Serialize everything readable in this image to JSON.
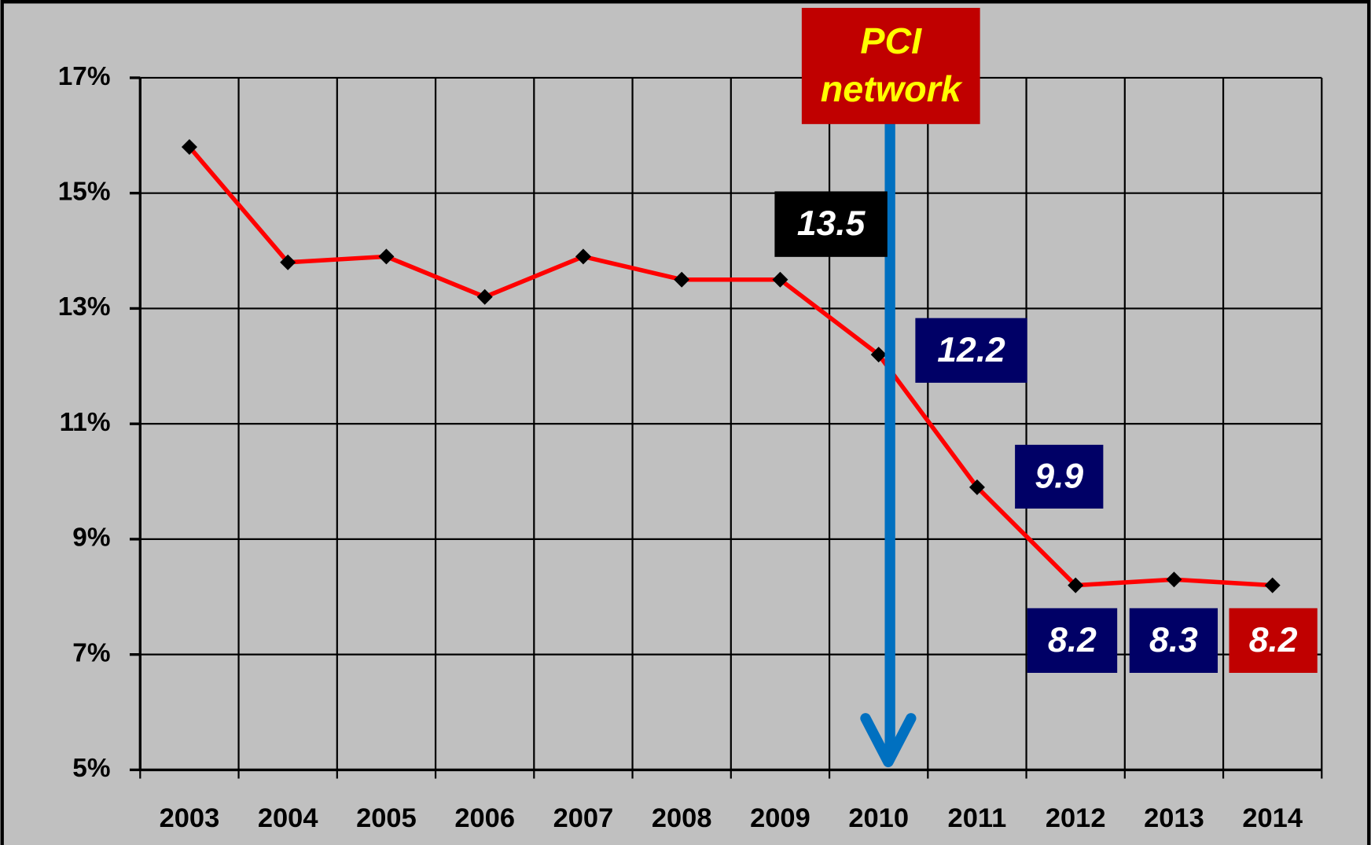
{
  "chart_data": {
    "type": "line",
    "categories": [
      "2003",
      "2004",
      "2005",
      "2006",
      "2007",
      "2008",
      "2009",
      "2010",
      "2011",
      "2012",
      "2013",
      "2014"
    ],
    "series": [
      {
        "color": "#ff0000",
        "values": [
          15.8,
          13.8,
          13.9,
          13.2,
          13.9,
          13.5,
          13.5,
          12.2,
          9.9,
          8.2,
          8.3,
          8.2
        ]
      }
    ],
    "value_labels": [
      null,
      null,
      null,
      null,
      null,
      null,
      "13.5",
      "12.2",
      "9.9",
      "8.2",
      "8.3",
      "8.2"
    ],
    "value_label_colors": [
      null,
      null,
      null,
      null,
      null,
      null,
      "#000000",
      "#000066",
      "#000066",
      "#000066",
      "#000066",
      "#c00000"
    ],
    "ylim": [
      5,
      17
    ],
    "yticks": [
      {
        "value": 5,
        "label": "5%"
      },
      {
        "value": 7,
        "label": "7%"
      },
      {
        "value": 9,
        "label": "9%"
      },
      {
        "value": 11,
        "label": "11%"
      },
      {
        "value": 13,
        "label": "13%"
      },
      {
        "value": 15,
        "label": "15%"
      },
      {
        "value": 17,
        "label": "17%"
      }
    ],
    "grid": true,
    "annotation": [
      "PCI",
      "network"
    ]
  }
}
